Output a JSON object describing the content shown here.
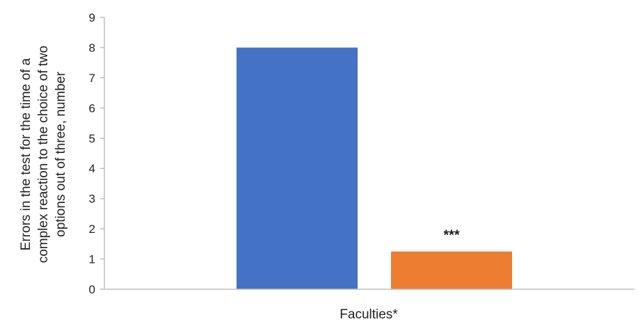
{
  "chart_data": {
    "type": "bar",
    "title": "",
    "xlabel": "Faculties*",
    "ylabel_lines": [
      "Errors in the test for the time of a",
      "complex reaction to the choice of two",
      "options out of three, number"
    ],
    "ylim": [
      0,
      9
    ],
    "yticks": [
      "0",
      "1",
      "2",
      "3",
      "4",
      "5",
      "6",
      "7",
      "8",
      "9"
    ],
    "grid": false,
    "legend": "none",
    "series": [
      {
        "values": [
          8.0,
          1.25
        ],
        "colors": [
          "#4472C4",
          "#ED7D31"
        ]
      }
    ],
    "annotations": [
      "",
      "***"
    ]
  }
}
